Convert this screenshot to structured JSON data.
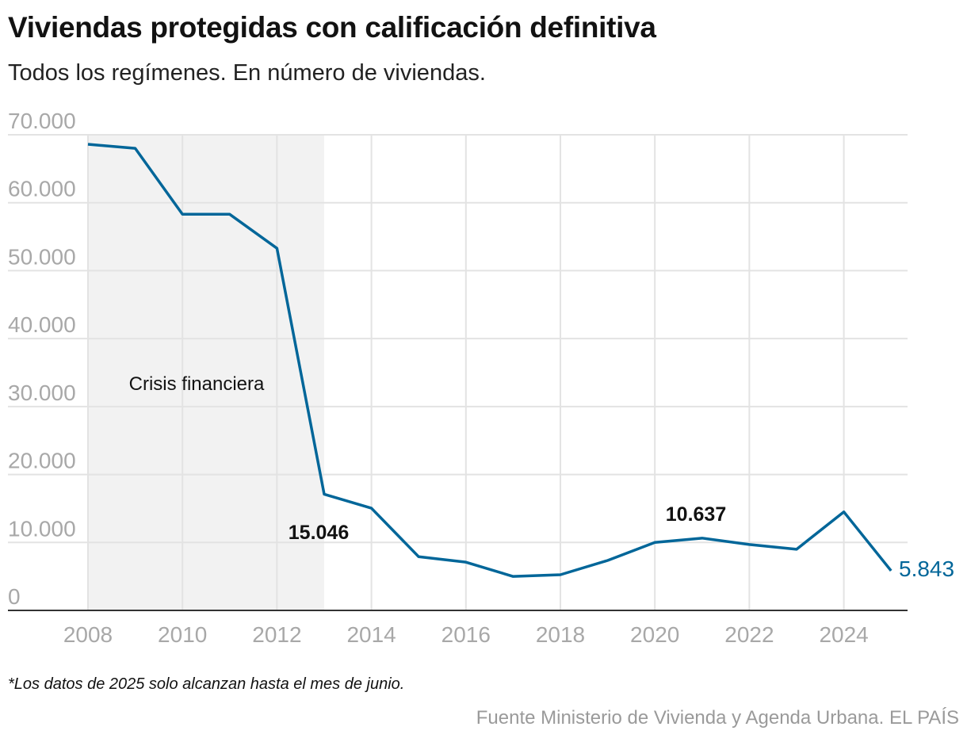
{
  "title": "Viviendas protegidas con calificación definitiva",
  "subtitle": "Todos los regímenes. En número de viviendas.",
  "note": "*Los datos de 2025 solo alcanzan hasta el mes de junio.",
  "source": "Fuente Ministerio de Vivienda y Agenda Urbana. EL PAÍS",
  "chart_data": {
    "type": "line",
    "x": [
      2008,
      2009,
      2010,
      2011,
      2012,
      2013,
      2014,
      2015,
      2016,
      2017,
      2018,
      2019,
      2020,
      2021,
      2022,
      2023,
      2024,
      2025
    ],
    "values": [
      68600,
      68000,
      58300,
      58300,
      53300,
      17100,
      15046,
      7900,
      7100,
      5000,
      5250,
      7350,
      10000,
      10637,
      9700,
      9000,
      14500,
      5843
    ],
    "ylim": [
      0,
      70000
    ],
    "yticks": [
      0,
      10000,
      20000,
      30000,
      40000,
      50000,
      60000,
      70000
    ],
    "ytick_labels": [
      "0",
      "10.000",
      "20.000",
      "30.000",
      "40.000",
      "50.000",
      "60.000",
      "70.000"
    ],
    "xticks": [
      2008,
      2010,
      2012,
      2014,
      2016,
      2018,
      2020,
      2022,
      2024
    ],
    "xtick_labels": [
      "2008",
      "2010",
      "2012",
      "2014",
      "2016",
      "2018",
      "2020",
      "2022",
      "2024"
    ],
    "grid": true,
    "line_color": "#006699",
    "shaded_region": {
      "from": 2008,
      "to": 2013,
      "label": "Crisis financiera",
      "color": "#f2f2f2"
    },
    "annotations": [
      {
        "x": 2014,
        "label": "15.046"
      },
      {
        "x": 2021,
        "label": "10.637"
      },
      {
        "x": 2025,
        "label": "5.843"
      }
    ]
  }
}
